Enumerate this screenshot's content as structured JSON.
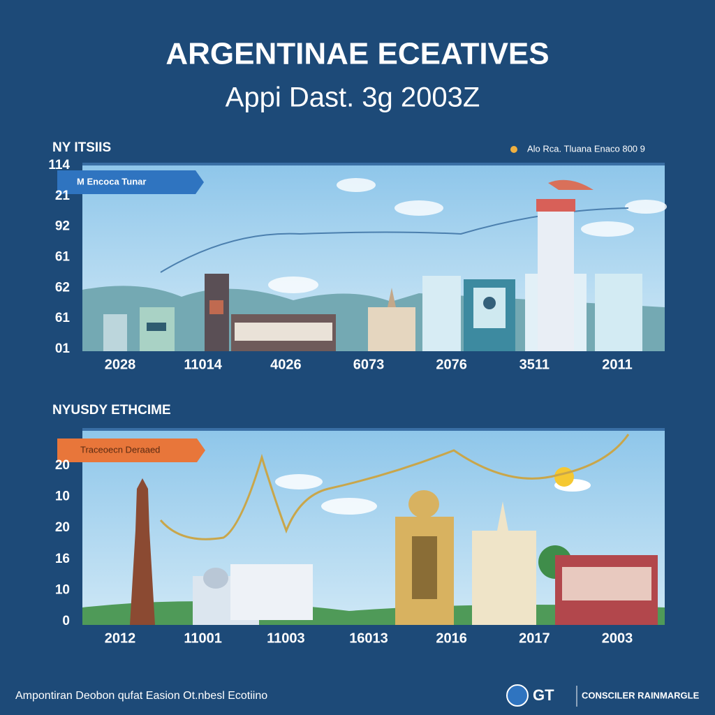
{
  "header": {
    "title": "ARGENTINAE ECEATIVES",
    "subtitle": "Appi Dast. 3g 2003Z"
  },
  "panels": [
    {
      "heading": "NY ITSIIS",
      "legend": "Alo Rca. Tluana Enaco 800 9",
      "banner": "M Encoca Tunar",
      "y_labels": [
        "114",
        "21",
        "92",
        "61",
        "62",
        "61",
        "01"
      ],
      "x_labels": [
        "2028",
        "11014",
        "4026",
        "6073",
        "2076",
        "3511",
        "2011"
      ]
    },
    {
      "heading": "NYUSDY ETHCIME",
      "banner": "Traceoecn Deraaed",
      "y_labels": [
        "20",
        "10",
        "20",
        "16",
        "10",
        "0"
      ],
      "x_labels": [
        "2012",
        "11001",
        "11003",
        "16013",
        "2016",
        "2017",
        "2003"
      ]
    }
  ],
  "footer": {
    "text": "Ampontiran Deobon qufat Easion Ot.nbesl Ecotiino",
    "logo": "GT",
    "brand": "CONSCILER RAINMARGLE"
  }
}
